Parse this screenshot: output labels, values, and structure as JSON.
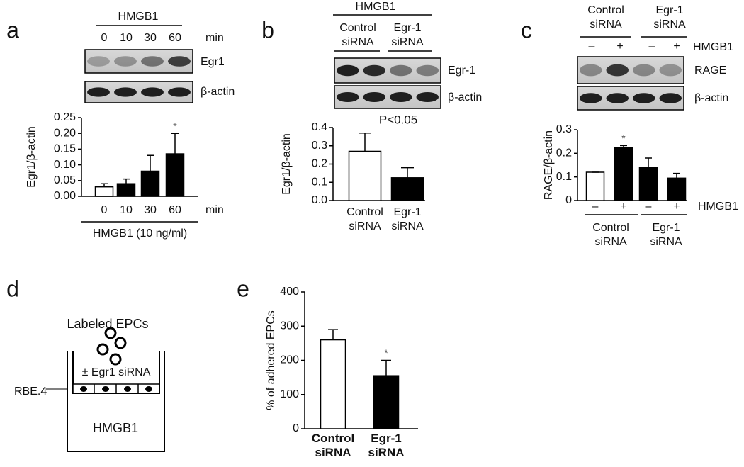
{
  "panels": [
    "a",
    "b",
    "c",
    "d",
    "e"
  ],
  "blot_a": {
    "group": "HMGB1",
    "lanes": [
      "0",
      "10",
      "30",
      "60"
    ],
    "unit": "min",
    "rows": [
      "Egr1",
      "β-actin"
    ]
  },
  "blot_b": {
    "group": "HMGB1",
    "lane_groups": [
      "Control siRNA",
      "Egr-1 siRNA"
    ],
    "rows": [
      "Egr-1",
      "β-actin"
    ]
  },
  "blot_c": {
    "lane_groups": [
      "Control siRNA",
      "Egr-1 siRNA"
    ],
    "lanes": [
      "–",
      "+",
      "–",
      "+"
    ],
    "treatment": "HMGB1",
    "rows": [
      "RAGE",
      "β-actin"
    ]
  },
  "diagram_d": {
    "title": "Labeled EPCs",
    "treatment": "± Egr1 siRNA",
    "cells": "RBE.4",
    "stimulus": "HMGB1"
  },
  "chart_data": [
    {
      "type": "bar",
      "ylabel": "Egr1/β-actin",
      "categories": [
        "0",
        "10",
        "30",
        "60"
      ],
      "x_unit": "min",
      "xlabel": "HMGB1 (10 ng/ml)",
      "values": [
        0.03,
        0.04,
        0.08,
        0.135
      ],
      "errors": [
        0.01,
        0.015,
        0.05,
        0.065
      ],
      "colors": [
        "#ffffff",
        "#000000",
        "#000000",
        "#000000"
      ],
      "significance": [
        null,
        null,
        null,
        "*"
      ],
      "ylim": [
        0,
        0.25
      ],
      "yticks": [
        {
          "value": 0,
          "label": "0.00"
        },
        {
          "value": 0.05,
          "label": "0.05"
        },
        {
          "value": 0.1,
          "label": "0.10"
        },
        {
          "value": 0.15,
          "label": "0.15"
        },
        {
          "value": 0.2,
          "label": "0.20"
        },
        {
          "value": 0.25,
          "label": "0.25"
        }
      ]
    },
    {
      "type": "bar",
      "ylabel": "Egr1/β-actin",
      "categories": [
        "Control siRNA",
        "Egr-1 siRNA"
      ],
      "annotation": "P<0.05",
      "values": [
        0.27,
        0.125
      ],
      "errors": [
        0.1,
        0.055
      ],
      "colors": [
        "#ffffff",
        "#000000"
      ],
      "ylim": [
        0,
        0.4
      ],
      "yticks": [
        {
          "value": 0,
          "label": "0.0"
        },
        0.1,
        0.2,
        0.3,
        0.4
      ]
    },
    {
      "type": "bar",
      "ylabel": "RAGE/β-actin",
      "categories": [
        "–",
        "+",
        "–",
        "+"
      ],
      "groups": [
        "Control siRNA",
        "Egr-1 siRNA"
      ],
      "series_label": "HMGB1",
      "values": [
        0.12,
        0.225,
        0.14,
        0.095
      ],
      "errors": [
        0,
        0.008,
        0.04,
        0.02
      ],
      "colors": [
        "#ffffff",
        "#000000",
        "#000000",
        "#000000"
      ],
      "significance": [
        null,
        "*",
        null,
        null
      ],
      "ylim": [
        0,
        0.3
      ],
      "yticks": [
        0,
        0.1,
        0.2,
        0.3
      ]
    },
    {
      "type": "bar",
      "ylabel": "% of adhered EPCs",
      "categories": [
        "Control siRNA",
        "Egr-1 siRNA"
      ],
      "values": [
        260,
        155
      ],
      "errors": [
        30,
        45
      ],
      "colors": [
        "#ffffff",
        "#000000"
      ],
      "significance": [
        null,
        "*"
      ],
      "ylim": [
        0,
        400
      ],
      "yticks": [
        0,
        100,
        200,
        300,
        400
      ]
    }
  ]
}
